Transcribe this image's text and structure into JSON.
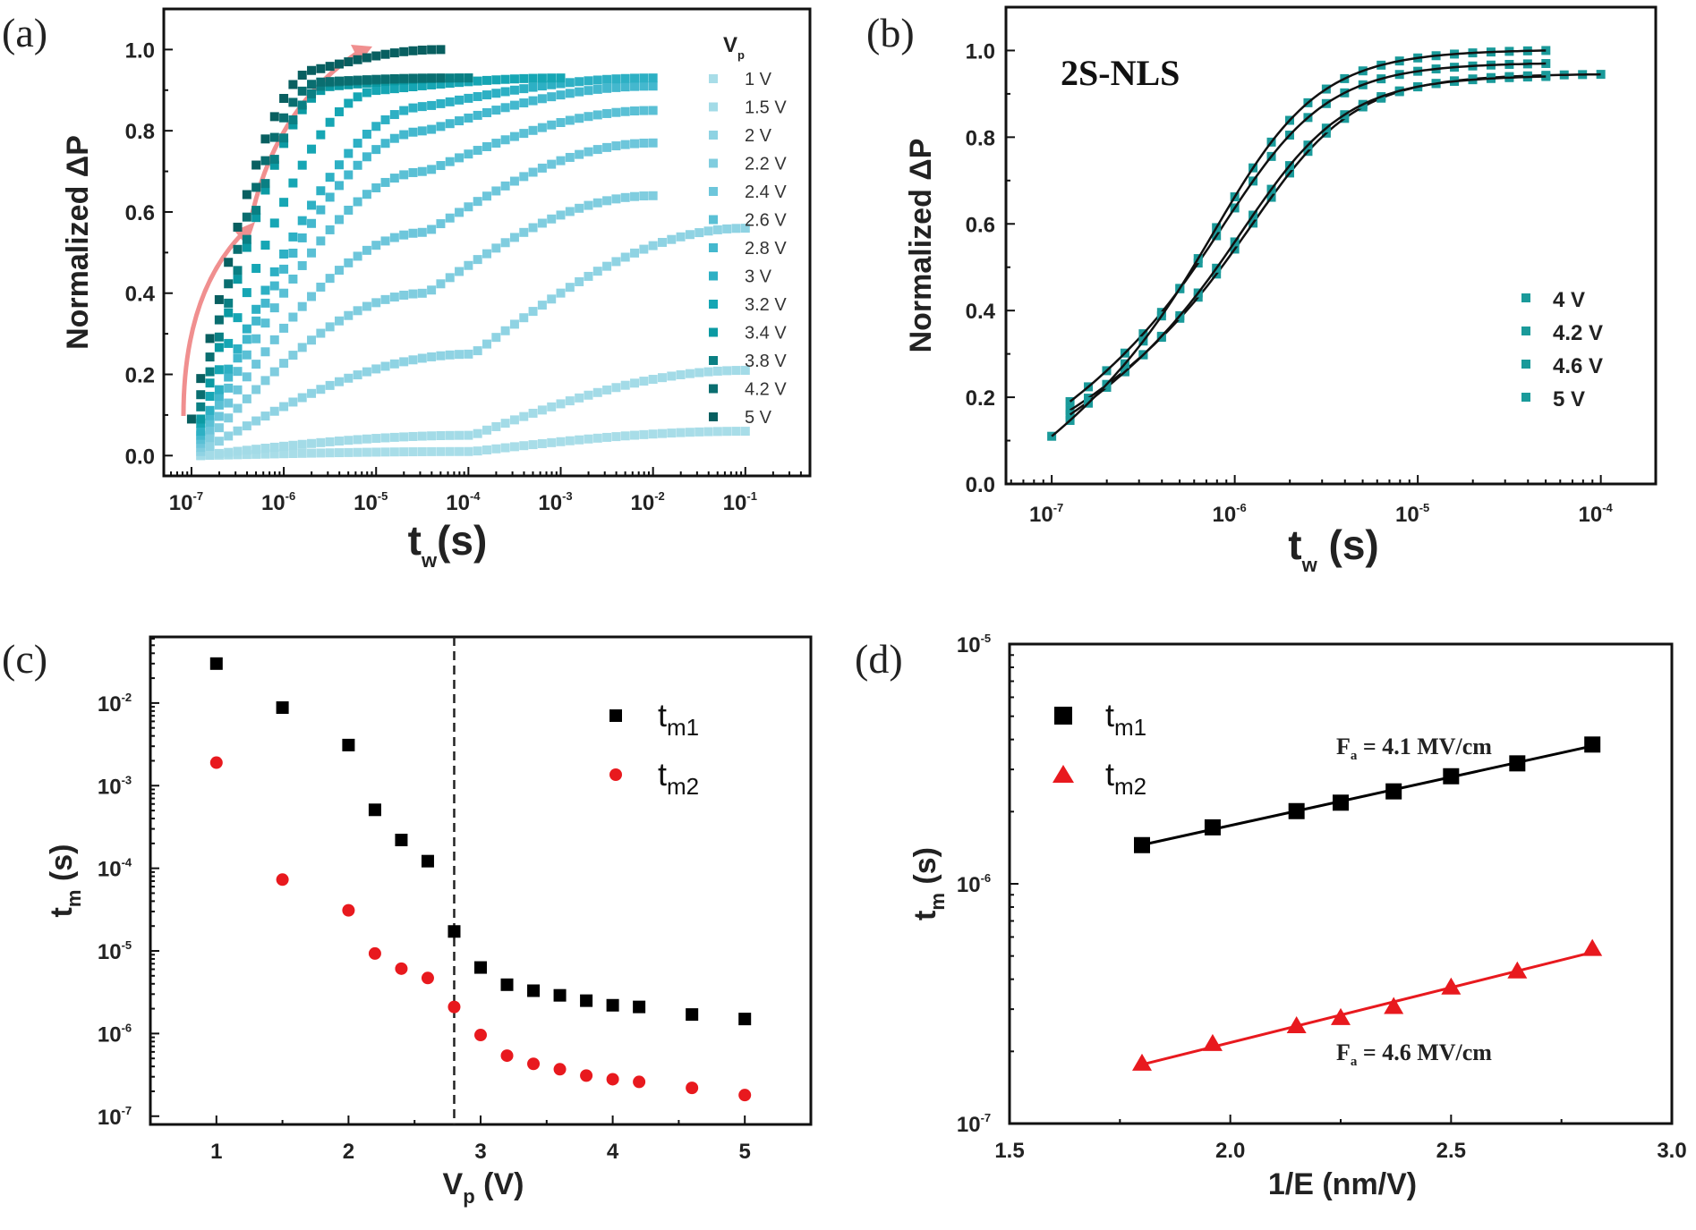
{
  "figure": {
    "panel_labels": [
      "(a)",
      "(b)",
      "(c)",
      "(d)"
    ]
  },
  "chart_data": [
    {
      "id": "a",
      "type": "scatter",
      "title": "",
      "xlabel": "t",
      "xlabel_sub": "w",
      "xlabel_unit": "(s)",
      "ylabel": "Normalized ΔP",
      "xscale": "log",
      "xlim_exp": [
        -7.3,
        -0.3
      ],
      "ylim": [
        -0.05,
        1.1
      ],
      "xticks_exp": [
        -7,
        -6,
        -5,
        -4,
        -3,
        -2,
        -1
      ],
      "yticks": [
        0.0,
        0.2,
        0.4,
        0.6,
        0.8,
        1.0
      ],
      "ytick_labels": [
        "0.0",
        "0.2",
        "0.4",
        "0.6",
        "0.8",
        "1.0"
      ],
      "legend_title": "V",
      "legend_title_sub": "p",
      "legend_position": "right",
      "annotation": "pink arrows indicating increasing V_p",
      "series": [
        {
          "name": "1 V",
          "color": "#a8dde8",
          "t_start_exp": -6.9,
          "t_end_exp": -1.0,
          "p_start": 0.0,
          "p_mid": 0.01,
          "p_end": 0.06
        },
        {
          "name": "1.5 V",
          "color": "#a3dbe7",
          "t_start_exp": -6.9,
          "t_end_exp": -1.0,
          "p_start": 0.0,
          "p_mid": 0.05,
          "p_end": 0.21
        },
        {
          "name": "2 V",
          "color": "#8fd3e3",
          "t_start_exp": -6.9,
          "t_end_exp": -1.0,
          "p_start": 0.01,
          "p_mid": 0.25,
          "p_end": 0.56
        },
        {
          "name": "2.2 V",
          "color": "#80cddf",
          "t_start_exp": -6.9,
          "t_end_exp": -2.0,
          "p_start": 0.02,
          "p_mid": 0.4,
          "p_end": 0.64
        },
        {
          "name": "2.4 V",
          "color": "#6dc6db",
          "t_start_exp": -6.9,
          "t_end_exp": -2.0,
          "p_start": 0.03,
          "p_mid": 0.55,
          "p_end": 0.77
        },
        {
          "name": "2.6 V",
          "color": "#5ac0d5",
          "t_start_exp": -6.9,
          "t_end_exp": -2.0,
          "p_start": 0.04,
          "p_mid": 0.7,
          "p_end": 0.85
        },
        {
          "name": "2.8 V",
          "color": "#44b8ce",
          "t_start_exp": -6.9,
          "t_end_exp": -2.0,
          "p_start": 0.05,
          "p_mid": 0.8,
          "p_end": 0.91
        },
        {
          "name": "3 V",
          "color": "#2db0c4",
          "t_start_exp": -6.9,
          "t_end_exp": -2.0,
          "p_start": 0.06,
          "p_mid": 0.86,
          "p_end": 0.93
        },
        {
          "name": "3.2 V",
          "color": "#16a6b4",
          "t_start_exp": -6.9,
          "t_end_exp": -3.0,
          "p_start": 0.08,
          "p_mid": 0.9,
          "p_end": 0.93
        },
        {
          "name": "3.4 V",
          "color": "#0b9aa3",
          "t_start_exp": -6.9,
          "t_end_exp": -4.0,
          "p_start": 0.09,
          "p_mid": 0.91,
          "p_end": 0.93
        },
        {
          "name": "3.8 V",
          "color": "#0a7f83",
          "t_start_exp": -6.9,
          "t_end_exp": -4.0,
          "p_start": 0.12,
          "p_mid": 0.92,
          "p_end": 0.93
        },
        {
          "name": "4.2 V",
          "color": "#0a6e70",
          "t_start_exp": -6.9,
          "t_end_exp": -4.3,
          "p_start": 0.15,
          "p_mid": 0.92,
          "p_end": 0.93
        },
        {
          "name": "5 V",
          "color": "#085f60",
          "t_start_exp": -7.0,
          "t_end_exp": -4.3,
          "p_start": 0.09,
          "p_mid": 0.95,
          "p_end": 1.0
        }
      ]
    },
    {
      "id": "b",
      "type": "scatter",
      "title": "",
      "annotation": "2S-NLS",
      "xlabel": "t",
      "xlabel_sub": "w",
      "xlabel_unit": "(s)",
      "ylabel": "Normalized ΔP",
      "xscale": "log",
      "xlim_exp": [
        -7.25,
        -3.7
      ],
      "ylim": [
        0.0,
        1.1
      ],
      "xticks_exp": [
        -7,
        -6,
        -5,
        -4
      ],
      "yticks": [
        0.0,
        0.2,
        0.4,
        0.6,
        0.8,
        1.0
      ],
      "ytick_labels": [
        "0.0",
        "0.2",
        "0.4",
        "0.6",
        "0.8",
        "1.0"
      ],
      "legend_position": "lower-right",
      "marker_color": "#1a9a9a",
      "fit_color": "#111111",
      "series": [
        {
          "name": "4 V",
          "t_start_exp": -6.9,
          "t_end_exp": -4.0,
          "p_start": 0.17,
          "knee_exp": -5.75,
          "p_end": 0.945
        },
        {
          "name": "4.2 V",
          "t_start_exp": -6.9,
          "t_end_exp": -4.3,
          "p_start": 0.16,
          "knee_exp": -5.8,
          "p_end": 0.94
        },
        {
          "name": "4.6 V",
          "t_start_exp": -6.9,
          "t_end_exp": -4.3,
          "p_start": 0.19,
          "knee_exp": -5.9,
          "p_end": 0.97
        },
        {
          "name": "5 V",
          "t_start_exp": -7.0,
          "t_end_exp": -4.3,
          "p_start": 0.11,
          "knee_exp": -5.95,
          "p_end": 1.0
        }
      ]
    },
    {
      "id": "c",
      "type": "scatter",
      "title": "",
      "xlabel": "V",
      "xlabel_sub": "p",
      "xlabel_unit": "(V)",
      "ylabel": "t",
      "ylabel_sub": "m",
      "ylabel_unit": "(s)",
      "yscale": "log",
      "xlim": [
        0.5,
        5.5
      ],
      "ylim_exp": [
        -7.1,
        -1.2
      ],
      "xticks": [
        1,
        2,
        3,
        4,
        5
      ],
      "yticks_exp": [
        -7,
        -6,
        -5,
        -4,
        -3,
        -2
      ],
      "vline_x": 2.8,
      "legend_position": "top-right",
      "x": [
        1,
        1.5,
        2,
        2.2,
        2.4,
        2.6,
        2.8,
        3,
        3.2,
        3.4,
        3.6,
        3.8,
        4,
        4.2,
        4.6,
        5
      ],
      "series": [
        {
          "name": "t",
          "sub": "m1",
          "marker": "square",
          "color": "#000000",
          "values": [
            0.03,
            0.0088,
            0.0031,
            0.00051,
            0.00022,
            0.000122,
            1.72e-05,
            6.3e-06,
            3.9e-06,
            3.3e-06,
            2.9e-06,
            2.5e-06,
            2.2e-06,
            2.1e-06,
            1.7e-06,
            1.5e-06
          ]
        },
        {
          "name": "t",
          "sub": "m2",
          "marker": "circle",
          "color": "#e8191e",
          "values": [
            0.0019,
            7.3e-05,
            3.1e-05,
            9.3e-06,
            6.1e-06,
            4.7e-06,
            2.1e-06,
            9.6e-07,
            5.4e-07,
            4.3e-07,
            3.7e-07,
            3.1e-07,
            2.8e-07,
            2.6e-07,
            2.2e-07,
            1.8e-07
          ]
        }
      ]
    },
    {
      "id": "d",
      "type": "line",
      "title": "",
      "xlabel": "1/E (nm/V)",
      "ylabel": "t",
      "ylabel_sub": "m",
      "ylabel_unit": "(s)",
      "yscale": "log",
      "xlim": [
        1.5,
        3.0
      ],
      "ylim_exp": [
        -7,
        -5
      ],
      "xticks": [
        1.5,
        2.0,
        2.5,
        3.0
      ],
      "xtick_labels": [
        "1.5",
        "2.0",
        "2.5",
        "3.0"
      ],
      "yticks_exp": [
        -7,
        -6,
        -5
      ],
      "legend_position": "top-left",
      "x": [
        1.8,
        1.96,
        2.15,
        2.25,
        2.37,
        2.5,
        2.65,
        2.82
      ],
      "series": [
        {
          "name": "t",
          "sub": "m1",
          "marker": "square",
          "color": "#000000",
          "values": [
            1.45e-06,
            1.72e-06,
            2.01e-06,
            2.18e-06,
            2.43e-06,
            2.81e-06,
            3.18e-06,
            3.81e-06
          ],
          "annotation": "F",
          "annotation_sub": "a",
          "annotation_rest": " = 4.1 MV/cm"
        },
        {
          "name": "t",
          "sub": "m2",
          "marker": "triangle",
          "color": "#e8191e",
          "values": [
            1.78e-07,
            2.15e-07,
            2.55e-07,
            2.76e-07,
            3.07e-07,
            3.7e-07,
            4.32e-07,
            5.36e-07
          ],
          "annotation": "F",
          "annotation_sub": "a",
          "annotation_rest": " = 4.6 MV/cm"
        }
      ]
    }
  ]
}
